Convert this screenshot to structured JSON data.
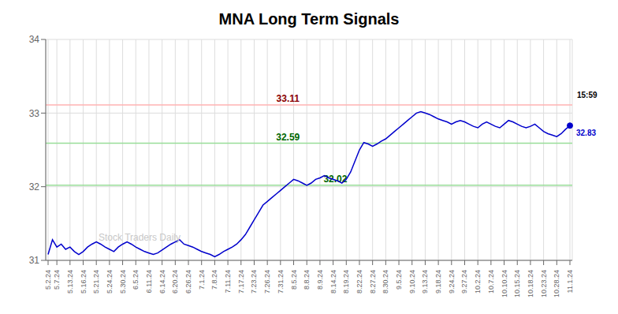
{
  "chart_data": {
    "type": "line",
    "title": "MNA Long Term Signals",
    "color": "#0000cc",
    "marker": "last",
    "grid": true,
    "ylim": [
      31,
      34
    ],
    "yticks": [
      31,
      32,
      33,
      34
    ],
    "watermark": "Stock Traders Daily",
    "hlines": [
      {
        "value": 33.11,
        "color": "#ffb3b3",
        "label": "33.11",
        "label_color": "#8b0000"
      },
      {
        "value": 32.59,
        "color": "#99dd99",
        "label": "32.59",
        "label_color": "#006600"
      },
      {
        "value": 32.02,
        "color": "#99dd99",
        "label": "32.02",
        "label_color": "#006600"
      }
    ],
    "end_labels": {
      "time": "15:59",
      "price": "32.83",
      "price_color": "#0000cc"
    },
    "categories": [
      "5.2.24",
      null,
      "5.7.24",
      null,
      null,
      "5.13.24",
      null,
      null,
      "5.16.24",
      null,
      null,
      "5.21.24",
      null,
      null,
      "5.24.24",
      null,
      null,
      "5.30.24",
      null,
      null,
      "6.5.24",
      null,
      null,
      "6.11.24",
      null,
      null,
      "6.14.24",
      null,
      null,
      "6.20.24",
      null,
      null,
      "6.26.24",
      null,
      null,
      "7.1.24",
      null,
      null,
      "7.8.24",
      null,
      null,
      "7.11.24",
      null,
      null,
      "7.17.24",
      null,
      null,
      "7.23.24",
      null,
      null,
      "7.26.24",
      null,
      null,
      "7.31.24",
      null,
      null,
      "8.5.24",
      null,
      null,
      "8.8.24",
      null,
      null,
      "8.9.24",
      null,
      null,
      "8.14.24",
      null,
      null,
      "8.19.24",
      null,
      null,
      "8.22.24",
      null,
      null,
      "8.27.24",
      null,
      null,
      "8.30.24",
      null,
      null,
      "9.5.24",
      null,
      null,
      "9.10.24",
      null,
      null,
      "9.13.24",
      null,
      null,
      "9.18.24",
      null,
      null,
      "9.24.24",
      null,
      null,
      "9.27.24",
      null,
      null,
      "10.2.24",
      null,
      null,
      "10.7.24",
      null,
      null,
      "10.10.24",
      null,
      null,
      "10.15.24",
      null,
      null,
      "10.18.24",
      null,
      null,
      "10.23.24",
      null,
      null,
      "10.28.24",
      null,
      null,
      "11.1.24"
    ],
    "values": [
      31.08,
      31.28,
      31.18,
      31.22,
      31.15,
      31.18,
      31.12,
      31.08,
      31.12,
      31.18,
      31.22,
      31.25,
      31.22,
      31.18,
      31.15,
      31.12,
      31.18,
      31.22,
      31.25,
      31.22,
      31.18,
      31.15,
      31.12,
      31.1,
      31.08,
      31.1,
      31.14,
      31.18,
      31.22,
      31.25,
      31.28,
      31.22,
      31.2,
      31.18,
      31.15,
      31.12,
      31.1,
      31.08,
      31.05,
      31.08,
      31.12,
      31.15,
      31.18,
      31.22,
      31.28,
      31.35,
      31.45,
      31.55,
      31.65,
      31.75,
      31.8,
      31.85,
      31.9,
      31.95,
      32.0,
      32.05,
      32.1,
      32.08,
      32.05,
      32.02,
      32.05,
      32.1,
      32.12,
      32.15,
      32.12,
      32.1,
      32.08,
      32.05,
      32.1,
      32.2,
      32.35,
      32.5,
      32.6,
      32.58,
      32.55,
      32.58,
      32.62,
      32.65,
      32.7,
      32.75,
      32.8,
      32.85,
      32.9,
      32.95,
      33.0,
      33.02,
      33.0,
      32.98,
      32.95,
      32.92,
      32.9,
      32.88,
      32.85,
      32.88,
      32.9,
      32.88,
      32.85,
      32.82,
      32.8,
      32.85,
      32.88,
      32.85,
      32.82,
      32.8,
      32.85,
      32.9,
      32.88,
      32.85,
      32.82,
      32.8,
      32.82,
      32.85,
      32.8,
      32.75,
      32.72,
      32.7,
      32.68,
      32.72,
      32.78,
      32.83
    ]
  }
}
